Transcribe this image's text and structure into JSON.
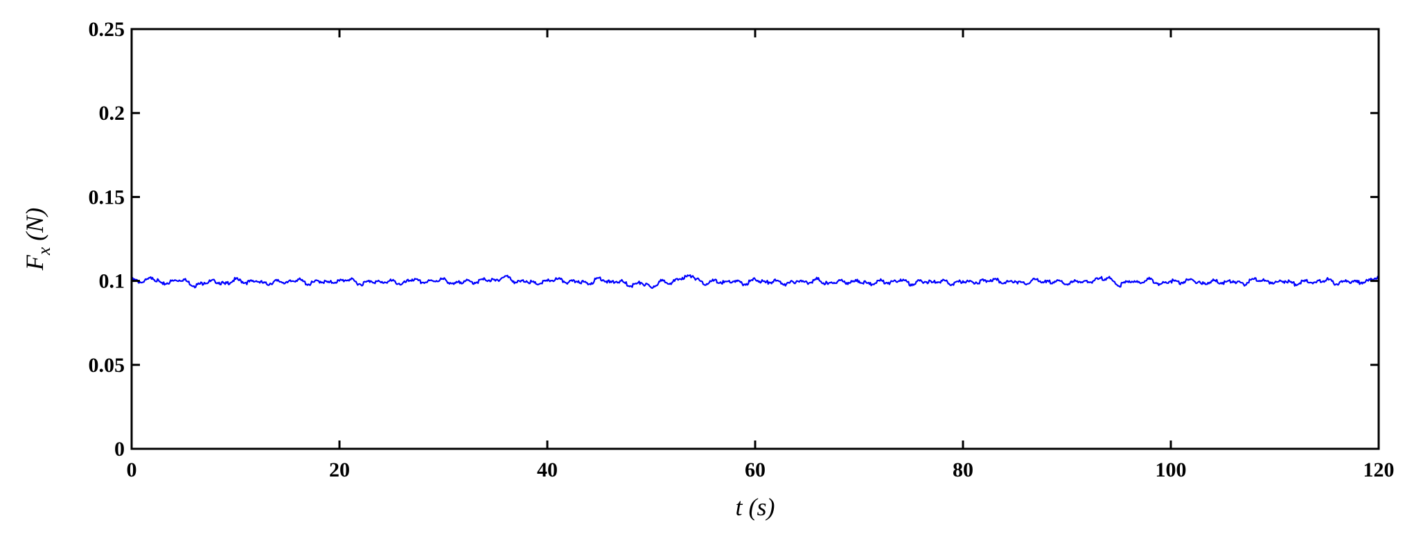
{
  "chart_data": {
    "type": "line",
    "title": "",
    "xlabel": "t (s)",
    "ylabel": "F_x (N)",
    "ylabel_parts": {
      "symbol": "F",
      "subscript": "x",
      "unit": " (N)"
    },
    "xlim": [
      0,
      120
    ],
    "ylim": [
      0,
      0.25
    ],
    "x_ticks": [
      0,
      20,
      40,
      60,
      80,
      100,
      120
    ],
    "x_tick_labels": [
      "0",
      "20",
      "40",
      "60",
      "80",
      "100",
      "120"
    ],
    "y_ticks": [
      0,
      0.05,
      0.1,
      0.15,
      0.2,
      0.25
    ],
    "y_tick_labels": [
      "0",
      "0.05",
      "0.1",
      "0.15",
      "0.2",
      "0.25"
    ],
    "grid": false,
    "series": [
      {
        "color": "#0000ff",
        "x": [
          0,
          1,
          2,
          3,
          4,
          5,
          6,
          7,
          8,
          9,
          10,
          11,
          12,
          13,
          14,
          15,
          16,
          17,
          18,
          19,
          20,
          21,
          22,
          23,
          24,
          25,
          26,
          27,
          28,
          29,
          30,
          31,
          32,
          33,
          34,
          35,
          36,
          37,
          38,
          39,
          40,
          41,
          42,
          43,
          44,
          45,
          46,
          47,
          48,
          49,
          50,
          51,
          52,
          53,
          54,
          55,
          56,
          57,
          58,
          59,
          60,
          61,
          62,
          63,
          64,
          65,
          66,
          67,
          68,
          69,
          70,
          71,
          72,
          73,
          74,
          75,
          76,
          77,
          78,
          79,
          80,
          81,
          82,
          83,
          84,
          85,
          86,
          87,
          88,
          89,
          90,
          91,
          92,
          93,
          94,
          95,
          96,
          97,
          98,
          99,
          100,
          101,
          102,
          103,
          104,
          105,
          106,
          107,
          108,
          109,
          110,
          111,
          112,
          113,
          114,
          115,
          116,
          117,
          118,
          119,
          120
        ],
        "y": [
          0.101,
          0.099,
          0.102,
          0.098,
          0.1,
          0.101,
          0.097,
          0.099,
          0.1,
          0.098,
          0.101,
          0.099,
          0.1,
          0.098,
          0.1,
          0.099,
          0.101,
          0.098,
          0.1,
          0.099,
          0.1,
          0.101,
          0.098,
          0.1,
          0.099,
          0.1,
          0.098,
          0.101,
          0.099,
          0.1,
          0.101,
          0.098,
          0.1,
          0.099,
          0.101,
          0.1,
          0.103,
          0.099,
          0.1,
          0.098,
          0.1,
          0.101,
          0.099,
          0.1,
          0.098,
          0.102,
          0.099,
          0.1,
          0.097,
          0.099,
          0.096,
          0.1,
          0.099,
          0.102,
          0.103,
          0.098,
          0.1,
          0.099,
          0.1,
          0.098,
          0.101,
          0.099,
          0.1,
          0.098,
          0.1,
          0.099,
          0.101,
          0.098,
          0.1,
          0.099,
          0.1,
          0.098,
          0.1,
          0.099,
          0.101,
          0.098,
          0.1,
          0.099,
          0.1,
          0.098,
          0.1,
          0.099,
          0.1,
          0.101,
          0.099,
          0.1,
          0.098,
          0.101,
          0.099,
          0.1,
          0.098,
          0.1,
          0.099,
          0.101,
          0.102,
          0.097,
          0.1,
          0.099,
          0.101,
          0.098,
          0.1,
          0.099,
          0.101,
          0.098,
          0.1,
          0.099,
          0.1,
          0.098,
          0.101,
          0.1,
          0.099,
          0.1,
          0.098,
          0.1,
          0.099,
          0.101,
          0.098,
          0.1,
          0.099,
          0.1,
          0.103
        ]
      }
    ]
  }
}
